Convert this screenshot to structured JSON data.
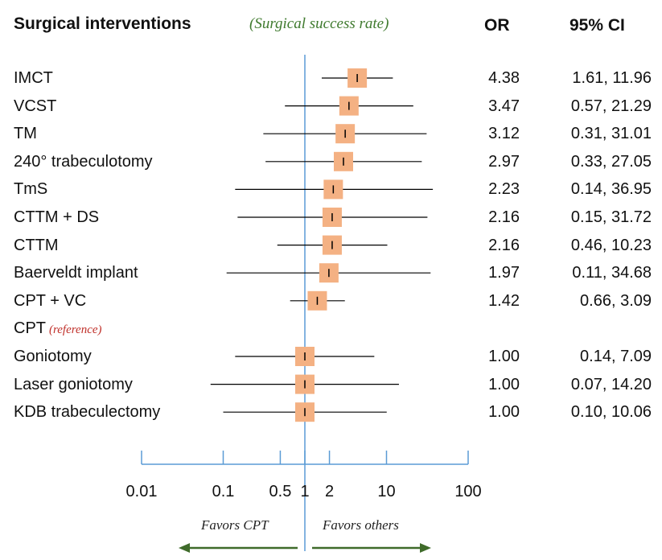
{
  "headers": {
    "interventions": "Surgical interventions",
    "subtitle": "(Surgical success rate)",
    "or": "OR",
    "ci": "95% CI"
  },
  "favors": {
    "left": "Favors CPT",
    "right": "Favors others"
  },
  "colors": {
    "marker": "#f4b183",
    "axis": "#5b9bd5",
    "arrow": "#3f6b2a",
    "subtitle": "#3f7a2e",
    "reference": "#c0302a"
  },
  "chart_data": {
    "type": "forest",
    "x_scale": "log",
    "xlim": [
      0.01,
      100
    ],
    "reference_line": 1,
    "x_ticks": [
      {
        "value": 0.01,
        "label": "0.01"
      },
      {
        "value": 0.1,
        "label": "0.1"
      },
      {
        "value": 0.5,
        "label": "0.5"
      },
      {
        "value": 1,
        "label": "1"
      },
      {
        "value": 2,
        "label": "2"
      },
      {
        "value": 10,
        "label": "10"
      },
      {
        "value": 100,
        "label": "100"
      }
    ],
    "rows": [
      {
        "label": "IMCT",
        "or": 4.38,
        "lo": 1.61,
        "hi": 11.96,
        "or_text": "4.38",
        "ci_text": "1.61, 11.96"
      },
      {
        "label": "VCST",
        "or": 3.47,
        "lo": 0.57,
        "hi": 21.29,
        "or_text": "3.47",
        "ci_text": "0.57, 21.29"
      },
      {
        "label": "TM",
        "or": 3.12,
        "lo": 0.31,
        "hi": 31.01,
        "or_text": "3.12",
        "ci_text": "0.31, 31.01"
      },
      {
        "label": "240° trabeculotomy",
        "or": 2.97,
        "lo": 0.33,
        "hi": 27.05,
        "or_text": "2.97",
        "ci_text": "0.33, 27.05"
      },
      {
        "label": "TmS",
        "or": 2.23,
        "lo": 0.14,
        "hi": 36.95,
        "or_text": "2.23",
        "ci_text": "0.14, 36.95"
      },
      {
        "label": "CTTM + DS",
        "or": 2.16,
        "lo": 0.15,
        "hi": 31.72,
        "or_text": "2.16",
        "ci_text": "0.15, 31.72"
      },
      {
        "label": "CTTM",
        "or": 2.16,
        "lo": 0.46,
        "hi": 10.23,
        "or_text": "2.16",
        "ci_text": "0.46, 10.23"
      },
      {
        "label": "Baerveldt implant",
        "or": 1.97,
        "lo": 0.11,
        "hi": 34.68,
        "or_text": "1.97",
        "ci_text": "0.11, 34.68"
      },
      {
        "label": "CPT + VC",
        "or": 1.42,
        "lo": 0.66,
        "hi": 3.09,
        "or_text": "1.42",
        "ci_text": "0.66, 3.09"
      },
      {
        "label": "CPT",
        "reference_note": "(reference)",
        "or": null,
        "lo": null,
        "hi": null,
        "or_text": "",
        "ci_text": ""
      },
      {
        "label": "Goniotomy",
        "or": 1.0,
        "lo": 0.14,
        "hi": 7.09,
        "or_text": "1.00",
        "ci_text": "0.14, 7.09"
      },
      {
        "label": "Laser goniotomy",
        "or": 1.0,
        "lo": 0.07,
        "hi": 14.2,
        "or_text": "1.00",
        "ci_text": "0.07, 14.20"
      },
      {
        "label": "KDB trabeculectomy",
        "or": 1.0,
        "lo": 0.1,
        "hi": 10.06,
        "or_text": "1.00",
        "ci_text": "0.10, 10.06"
      }
    ]
  }
}
